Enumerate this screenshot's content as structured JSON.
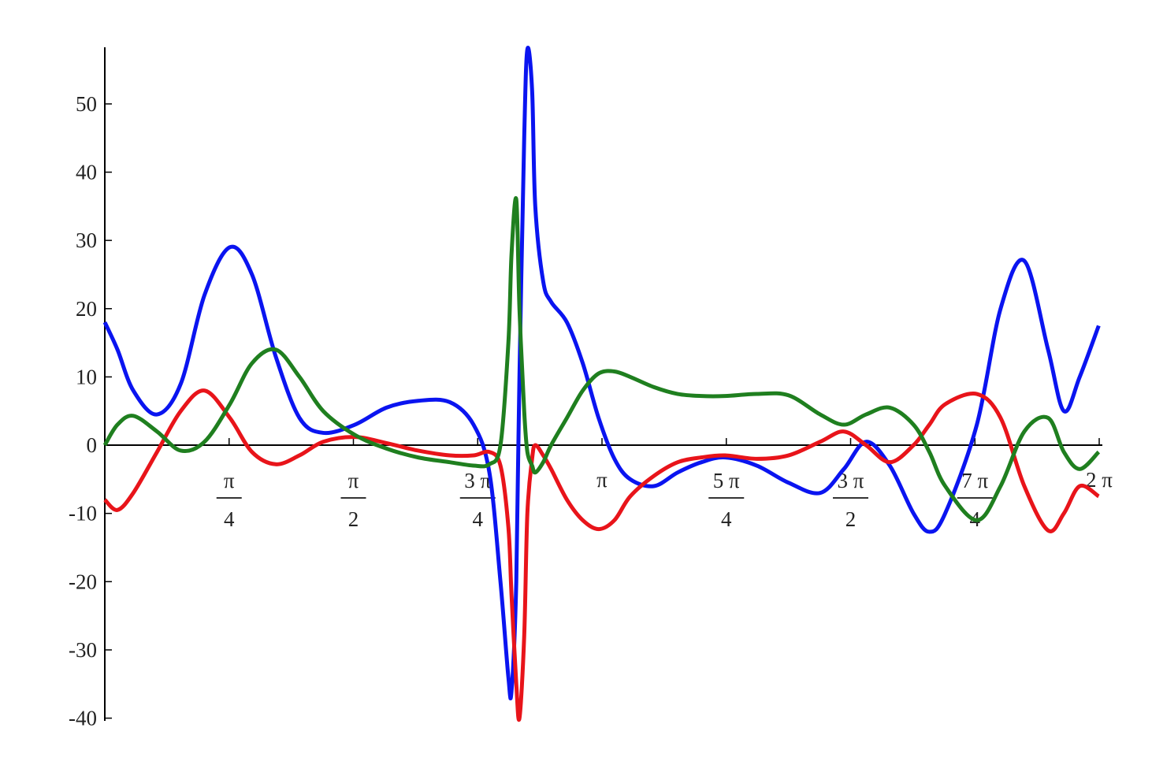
{
  "chart_data": {
    "type": "line",
    "x": [
      0,
      0.08,
      0.18,
      0.33,
      0.48,
      0.63,
      0.79,
      0.93,
      1.08,
      1.23,
      1.38,
      1.58,
      1.78,
      1.98,
      2.18,
      2.33,
      2.43,
      2.5,
      2.55,
      2.57,
      2.6,
      2.62,
      2.65,
      2.67,
      2.7,
      2.72,
      2.77,
      2.82,
      2.92,
      3.02,
      3.12,
      3.22,
      3.32,
      3.47,
      3.62,
      3.77,
      3.92,
      4.12,
      4.32,
      4.52,
      4.67,
      4.81,
      4.96,
      5.11,
      5.21,
      5.31,
      5.51,
      5.66,
      5.81,
      5.96,
      6.06,
      6.16,
      6.28
    ],
    "series": [
      {
        "color": "#0a14f0",
        "values": [
          18,
          14,
          8,
          4.5,
          9,
          22,
          29,
          25,
          13,
          4,
          1.8,
          3,
          5.5,
          6.5,
          6.3,
          3,
          -4,
          -20,
          -34,
          -36,
          -20,
          10,
          45,
          58,
          52,
          35,
          24,
          21,
          18,
          12,
          4,
          -2,
          -5,
          -6,
          -4,
          -2.5,
          -1.8,
          -3,
          -5.5,
          -7,
          -3.5,
          0.5,
          -3,
          -10,
          -12.7,
          -10,
          3,
          20,
          27,
          14,
          5,
          10,
          17.5
        ]
      },
      {
        "color": "#e8141a",
        "values": [
          -8,
          -9.5,
          -7,
          -1,
          5,
          8,
          4,
          -1,
          -2.8,
          -1.5,
          0.5,
          1.2,
          0.3,
          -0.8,
          -1.5,
          -1.5,
          -1,
          -3,
          -12,
          -22,
          -35,
          -40,
          -28,
          -10,
          -2,
          0,
          -1.5,
          -3.5,
          -8,
          -11,
          -12.3,
          -11,
          -7.5,
          -4.5,
          -2.5,
          -1.8,
          -1.5,
          -2,
          -1.5,
          0.5,
          2,
          0,
          -2.5,
          0,
          3,
          6,
          7.5,
          4,
          -6,
          -12.5,
          -10,
          -6,
          -7.5
        ]
      },
      {
        "color": "#1f7f1f",
        "values": [
          0,
          3,
          4.3,
          2,
          -0.8,
          0.5,
          6,
          12,
          14,
          10,
          5,
          1.5,
          -0.5,
          -1.8,
          -2.5,
          -3,
          -2.8,
          0,
          15,
          28,
          36,
          20,
          5,
          -1,
          -3,
          -4,
          -2.5,
          0,
          4,
          8,
          10.5,
          10.8,
          10,
          8.5,
          7.5,
          7.2,
          7.2,
          7.5,
          7.3,
          4.5,
          3,
          4.5,
          5.5,
          3,
          -1,
          -6,
          -11,
          -6,
          2,
          4,
          -1,
          -3.5,
          -1
        ]
      }
    ],
    "xlim": [
      0,
      6.2832
    ],
    "xticks": [
      {
        "value": 0.7854,
        "label": "π/4"
      },
      {
        "value": 1.5708,
        "label": "π/2"
      },
      {
        "value": 2.3562,
        "label": "3 π/4"
      },
      {
        "value": 3.1416,
        "label": "π"
      },
      {
        "value": 3.927,
        "label": "5 π/4"
      },
      {
        "value": 4.7124,
        "label": "3 π/2"
      },
      {
        "value": 5.4978,
        "label": "7 π/4"
      },
      {
        "value": 6.2832,
        "label": "2 π"
      }
    ],
    "ylim": [
      -40.4,
      58.3
    ],
    "yticks": [
      -40,
      -30,
      -20,
      -10,
      0,
      10,
      20,
      30,
      40,
      50
    ]
  }
}
